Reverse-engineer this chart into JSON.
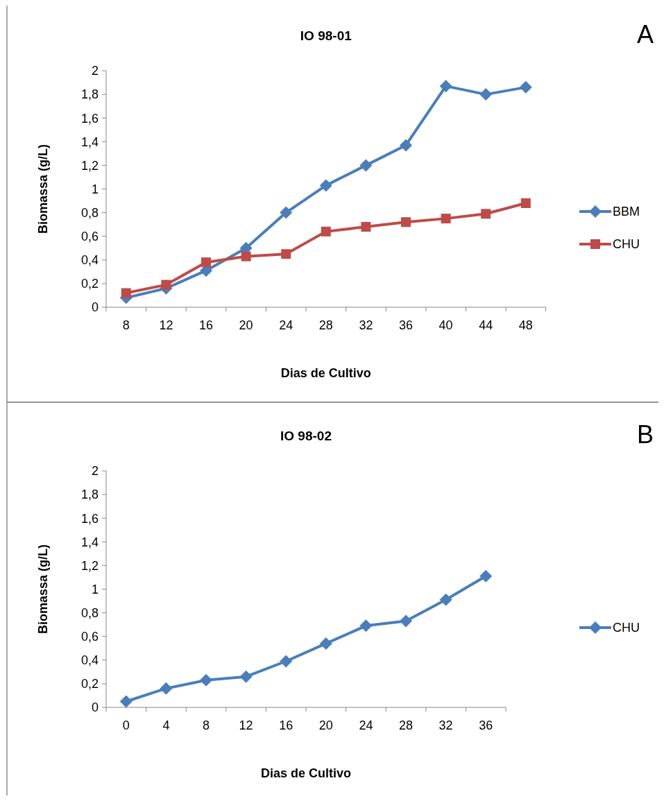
{
  "chart_data": [
    {
      "type": "line",
      "title": "IO 98-01",
      "xlabel": "Dias de Cultivo",
      "ylabel": "Biomassa (g/L)",
      "annotations": [
        "A"
      ],
      "categories": [
        "8",
        "12",
        "16",
        "20",
        "24",
        "28",
        "32",
        "36",
        "40",
        "44",
        "48"
      ],
      "ylim": [
        0,
        2
      ],
      "yticks": [
        0,
        {
          "value": 0.2,
          "label": "0,2"
        },
        {
          "value": 0.4,
          "label": "0,4"
        },
        {
          "value": 0.6,
          "label": "0,6"
        },
        {
          "value": 0.8,
          "label": "0,8"
        },
        1,
        {
          "value": 1.2,
          "label": "1,2"
        },
        {
          "value": 1.4,
          "label": "1,4"
        },
        {
          "value": 1.6,
          "label": "1,6"
        },
        {
          "value": 1.8,
          "label": "1,8"
        },
        2
      ],
      "grid": false,
      "legend": "right",
      "series": [
        {
          "name": "BBM",
          "color": "#4a7ebb",
          "marker": "diamond",
          "values": [
            0.08,
            0.16,
            0.31,
            0.5,
            0.8,
            1.03,
            1.2,
            1.37,
            1.87,
            1.8,
            1.86
          ]
        },
        {
          "name": "CHU",
          "color": "#be4b48",
          "marker": "square",
          "values": [
            0.12,
            0.19,
            0.38,
            0.43,
            0.45,
            0.64,
            0.68,
            0.72,
            0.75,
            0.79,
            0.88
          ]
        }
      ]
    },
    {
      "type": "line",
      "title": "IO 98-02",
      "xlabel": "Dias de Cultivo",
      "ylabel": "Biomassa (g/L)",
      "annotations": [
        "B"
      ],
      "categories": [
        "0",
        "4",
        "8",
        "12",
        "16",
        "20",
        "24",
        "28",
        "32",
        "36"
      ],
      "ylim": [
        0,
        2
      ],
      "yticks": [
        0,
        {
          "value": 0.2,
          "label": "0,2"
        },
        {
          "value": 0.4,
          "label": "0,4"
        },
        {
          "value": 0.6,
          "label": "0,6"
        },
        {
          "value": 0.8,
          "label": "0,8"
        },
        1,
        {
          "value": 1.2,
          "label": "1,2"
        },
        {
          "value": 1.4,
          "label": "1,4"
        },
        {
          "value": 1.6,
          "label": "1,6"
        },
        {
          "value": 1.8,
          "label": "1,8"
        },
        2
      ],
      "grid": false,
      "legend": "right",
      "series": [
        {
          "name": "CHU",
          "color": "#4a7ebb",
          "marker": "diamond",
          "values": [
            0.05,
            0.16,
            0.23,
            0.26,
            0.39,
            0.54,
            0.69,
            0.73,
            0.91,
            1.11
          ]
        }
      ]
    }
  ]
}
